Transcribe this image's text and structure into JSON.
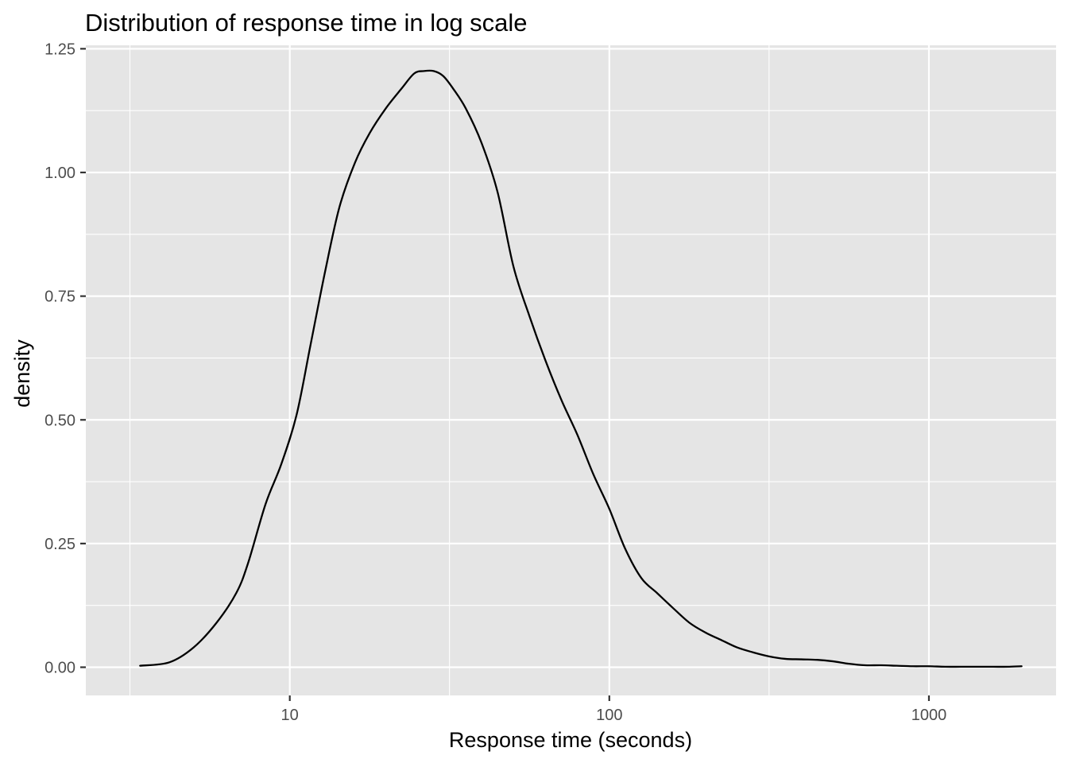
{
  "chart_data": {
    "type": "line",
    "title": "Distribution of response time in log scale",
    "xlabel": "Response time (seconds)",
    "ylabel": "density",
    "x_scale": "log10",
    "xlim": [
      2.3,
      2500
    ],
    "ylim": [
      -0.057,
      1.257
    ],
    "x_ticks": [
      10,
      100,
      1000
    ],
    "x_tick_labels": [
      "10",
      "100",
      "1000"
    ],
    "x_minor_ticks": [
      3.16,
      31.6,
      316
    ],
    "y_ticks": [
      0,
      0.25,
      0.5,
      0.75,
      1.0,
      1.25
    ],
    "y_tick_labels": [
      "0.00",
      "0.25",
      "0.50",
      "0.75",
      "1.00",
      "1.25"
    ],
    "grid": true,
    "legend": "none",
    "colors": {
      "panel": "#e5e5e5",
      "line": "#000000",
      "grid": "#ffffff",
      "tick_text": "#4d4d4d"
    },
    "series": [
      {
        "x": [
          3.4,
          4.2,
          5.0,
          5.9,
          6.8,
          7.4,
          8.4,
          9.4,
          10.5,
          11.6,
          12.9,
          14.3,
          16.0,
          17.8,
          20.0,
          22.4,
          24.5,
          26.3,
          28.2,
          30.2,
          32.4,
          35.5,
          39.8,
          44.7,
          50.1,
          56.2,
          63.1,
          70.8,
          79.4,
          89.1,
          100,
          112,
          126,
          141,
          158,
          178,
          200,
          224,
          251,
          282,
          316,
          355,
          398,
          447,
          501,
          562,
          631,
          708,
          794,
          891,
          1000,
          1122,
          1259,
          1413,
          1585,
          1778,
          1950
        ],
        "y": [
          0.003,
          0.01,
          0.04,
          0.09,
          0.15,
          0.21,
          0.33,
          0.41,
          0.51,
          0.65,
          0.8,
          0.93,
          1.02,
          1.08,
          1.13,
          1.17,
          1.2,
          1.205,
          1.205,
          1.195,
          1.17,
          1.13,
          1.06,
          0.96,
          0.81,
          0.71,
          0.62,
          0.54,
          0.47,
          0.39,
          0.32,
          0.24,
          0.18,
          0.15,
          0.12,
          0.09,
          0.07,
          0.055,
          0.04,
          0.03,
          0.022,
          0.017,
          0.016,
          0.015,
          0.012,
          0.007,
          0.004,
          0.004,
          0.003,
          0.002,
          0.002,
          0.001,
          0.001,
          0.001,
          0.001,
          0.001,
          0.002
        ]
      }
    ]
  }
}
